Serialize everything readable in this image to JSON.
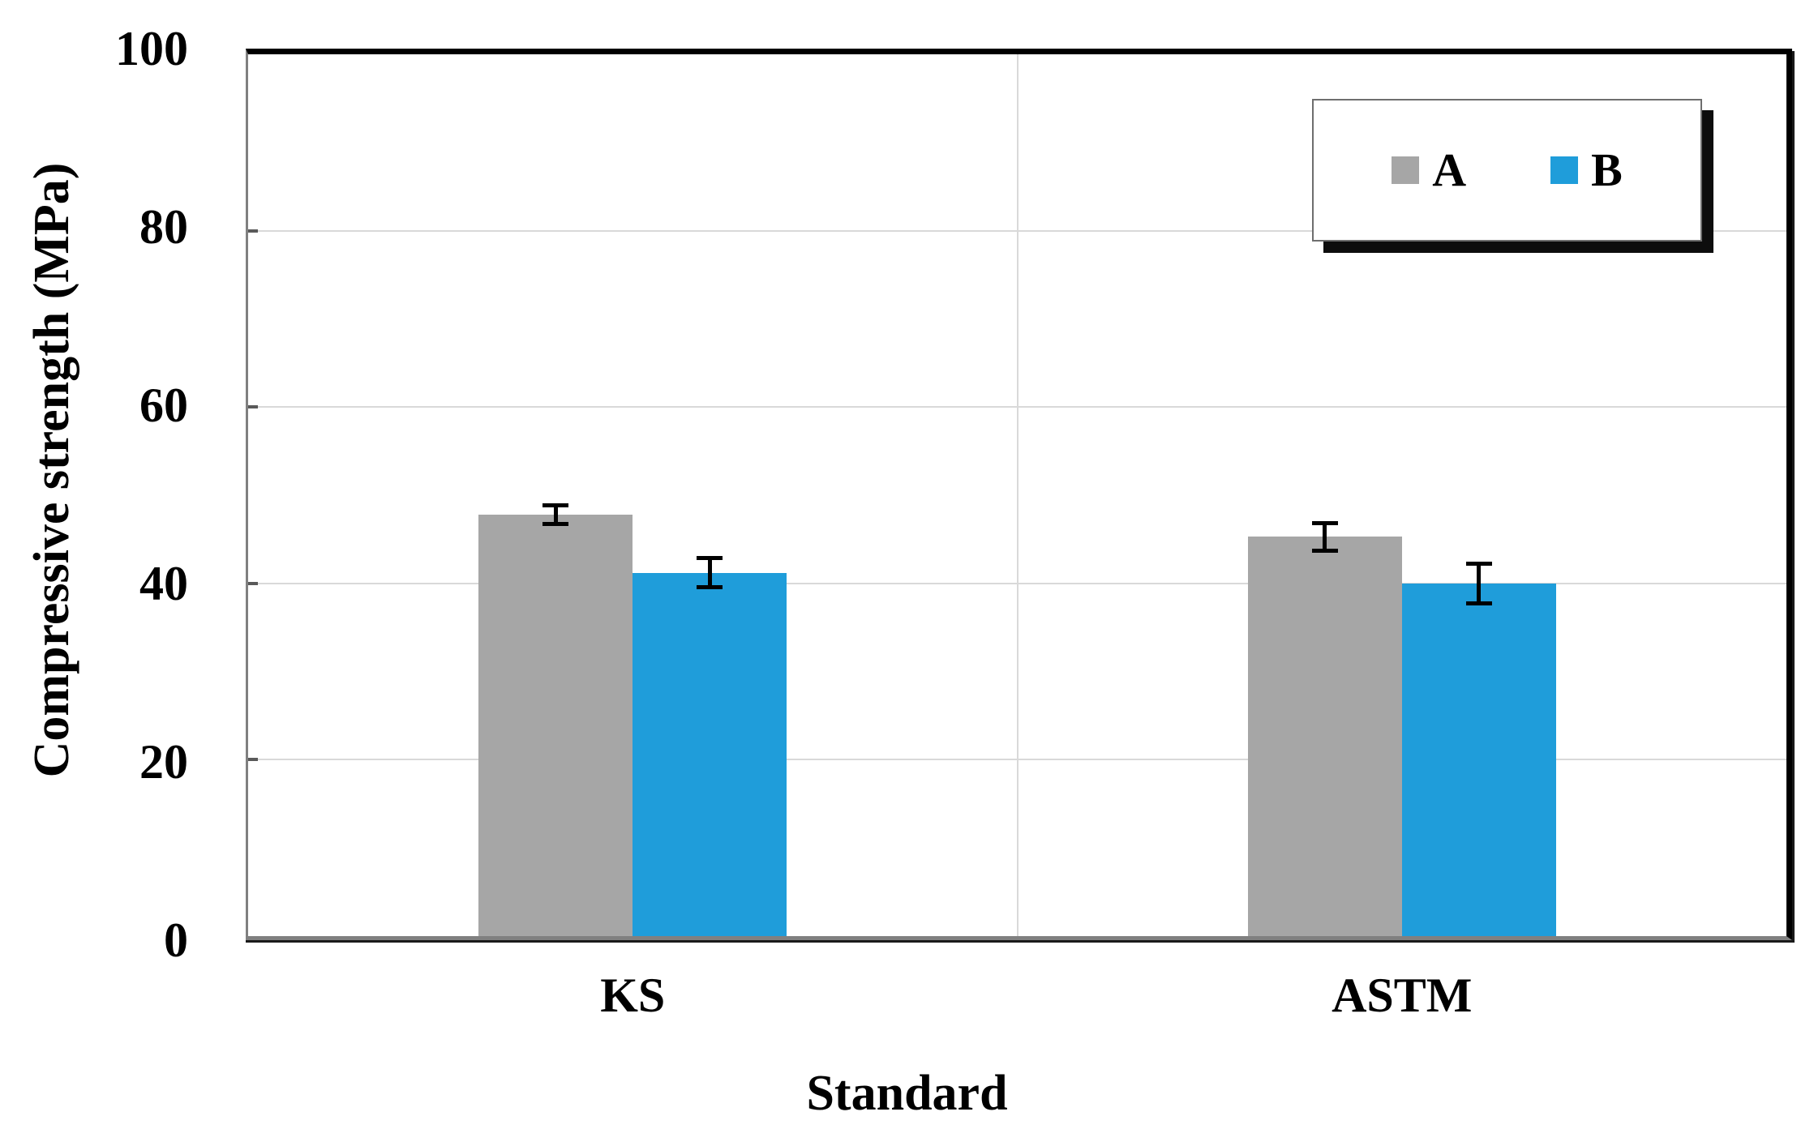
{
  "chart_data": {
    "type": "bar",
    "title": "",
    "xlabel": "Standard",
    "ylabel": "Compressive strength (MPa)",
    "categories": [
      "KS",
      "ASTM"
    ],
    "series": [
      {
        "name": "A",
        "color": "#A6A6A6",
        "values": [
          47.8,
          45.3
        ],
        "errors": [
          1.3,
          1.8
        ]
      },
      {
        "name": "B",
        "color": "#1F9DDA",
        "values": [
          41.2,
          40.0
        ],
        "errors": [
          1.9,
          2.5
        ]
      }
    ],
    "ylim": [
      0,
      100
    ],
    "yticks": [
      0,
      20,
      40,
      60,
      80,
      100
    ],
    "grid": {
      "horizontal": true,
      "vertical_category_separator": true
    },
    "legend": {
      "position": "top-right",
      "entries": [
        "A",
        "B"
      ]
    }
  },
  "colors": {
    "background": "#FFFFFF",
    "gridline": "#D9D9D9",
    "frame_dark": "#000000",
    "frame_gray": "#808080",
    "shadow": "#0D0D0D",
    "error_bar": "#000000",
    "text": "#000000"
  }
}
